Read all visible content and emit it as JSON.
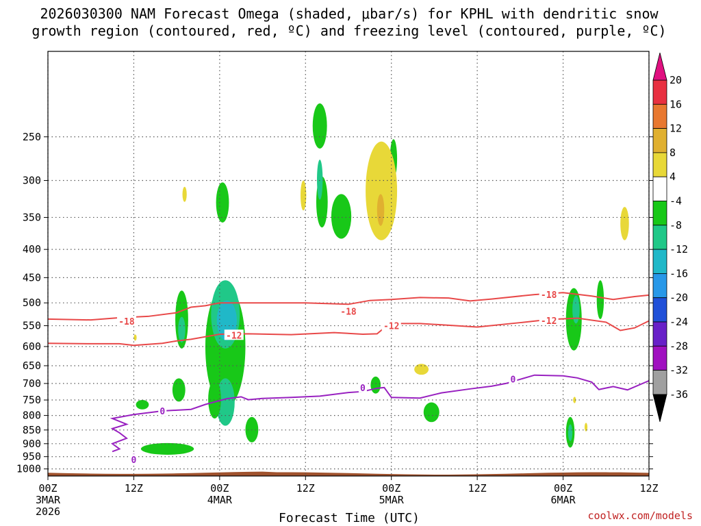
{
  "chart_data": {
    "type": "heatmap",
    "title": [
      "2026030300 NAM Forecast Omega (shaded, μbar/s) for KPHL with dendritic snow",
      "growth region (contoured, red, ºC) and freezing level (contoured, purple, ºC)"
    ],
    "xlabel": "Forecast Time (UTC)",
    "ylabel": "",
    "credit": "coolwx.com/models",
    "x_range_hours": [
      0,
      84
    ],
    "y_range_hpa": [
      1030,
      175
    ],
    "x_ticks": [
      {
        "hour": 0,
        "label": "00Z",
        "sub": "3MAR",
        "sub2": "2026"
      },
      {
        "hour": 12,
        "label": "12Z",
        "sub": "",
        "sub2": ""
      },
      {
        "hour": 24,
        "label": "00Z",
        "sub": "4MAR",
        "sub2": ""
      },
      {
        "hour": 36,
        "label": "12Z",
        "sub": "",
        "sub2": ""
      },
      {
        "hour": 48,
        "label": "00Z",
        "sub": "5MAR",
        "sub2": ""
      },
      {
        "hour": 60,
        "label": "12Z",
        "sub": "",
        "sub2": ""
      },
      {
        "hour": 72,
        "label": "00Z",
        "sub": "6MAR",
        "sub2": ""
      },
      {
        "hour": 84,
        "label": "12Z",
        "sub": "",
        "sub2": ""
      }
    ],
    "y_ticks": [
      250,
      300,
      350,
      400,
      450,
      500,
      550,
      600,
      650,
      700,
      750,
      800,
      850,
      900,
      950,
      1000
    ],
    "colorbar": {
      "labels": [
        "20",
        "16",
        "12",
        "8",
        "4",
        "-4",
        "-8",
        "-12",
        "-16",
        "-20",
        "-24",
        "-28",
        "-32",
        "-36"
      ],
      "colors": [
        "#e83040",
        "#e87830",
        "#e0b030",
        "#e8d838",
        "#ffffff",
        "#18c818",
        "#20c888",
        "#20b8c8",
        "#2898e8",
        "#2050d8",
        "#6820c8",
        "#a010c0",
        "#a0a0a0"
      ],
      "top_arrow_color": "#e01080",
      "bottom_arrow_color": "#000000"
    },
    "series": [
      {
        "name": "-18",
        "color": "#e84848",
        "points": [
          [
            0,
            535
          ],
          [
            6,
            537
          ],
          [
            10,
            532
          ],
          [
            14,
            529
          ],
          [
            18,
            521
          ],
          [
            20,
            509
          ],
          [
            22,
            506
          ],
          [
            24,
            500
          ],
          [
            30,
            500
          ],
          [
            36,
            500
          ],
          [
            42,
            503
          ],
          [
            45,
            495
          ],
          [
            48,
            493
          ],
          [
            52,
            489
          ],
          [
            56,
            490
          ],
          [
            59,
            496
          ],
          [
            62,
            492
          ],
          [
            68,
            483
          ],
          [
            72,
            479
          ],
          [
            76,
            486
          ],
          [
            79,
            493
          ],
          [
            82,
            487
          ],
          [
            84,
            484
          ]
        ]
      },
      {
        "name": "-12",
        "color": "#e84848",
        "points": [
          [
            0,
            592
          ],
          [
            6,
            593
          ],
          [
            10,
            593
          ],
          [
            12,
            597
          ],
          [
            16,
            592
          ],
          [
            18,
            586
          ],
          [
            20,
            582
          ],
          [
            24,
            570
          ],
          [
            28,
            569
          ],
          [
            34,
            571
          ],
          [
            40,
            566
          ],
          [
            44,
            570
          ],
          [
            46,
            569
          ],
          [
            47,
            555
          ],
          [
            48,
            545
          ],
          [
            52,
            545
          ],
          [
            56,
            549
          ],
          [
            60,
            553
          ],
          [
            66,
            543
          ],
          [
            70,
            536
          ],
          [
            74,
            533
          ],
          [
            78,
            542
          ],
          [
            80,
            561
          ],
          [
            82,
            555
          ],
          [
            84,
            539
          ]
        ]
      },
      {
        "name": "0",
        "color": "#9820c0",
        "points": [
          [
            9,
            930
          ],
          [
            10,
            920
          ],
          [
            9,
            900
          ],
          [
            11,
            880
          ],
          [
            10,
            860
          ],
          [
            9,
            845
          ],
          [
            11,
            830
          ],
          [
            9,
            810
          ],
          [
            12,
            797
          ],
          [
            16,
            785
          ],
          [
            20,
            780
          ],
          [
            22,
            764
          ],
          [
            25,
            746
          ],
          [
            27,
            740
          ],
          [
            28,
            749
          ],
          [
            30,
            745
          ],
          [
            34,
            742
          ],
          [
            38,
            738
          ],
          [
            42,
            727
          ],
          [
            44,
            724
          ],
          [
            46,
            714
          ],
          [
            47,
            712
          ],
          [
            48,
            742
          ],
          [
            52,
            744
          ],
          [
            55,
            728
          ],
          [
            59,
            716
          ],
          [
            62,
            708
          ],
          [
            64,
            700
          ],
          [
            68,
            676
          ],
          [
            72,
            678
          ],
          [
            74,
            684
          ],
          [
            76,
            696
          ],
          [
            77,
            718
          ],
          [
            79,
            709
          ],
          [
            81,
            719
          ],
          [
            84,
            692
          ]
        ]
      }
    ],
    "contour_labels": [
      {
        "text": "-18",
        "hour": 11,
        "hpa": 540,
        "color": "#e84848"
      },
      {
        "text": "-18",
        "hour": 42,
        "hpa": 518,
        "color": "#e84848"
      },
      {
        "text": "-18",
        "hour": 70,
        "hpa": 483,
        "color": "#e84848"
      },
      {
        "text": "-12",
        "hour": 26,
        "hpa": 572,
        "color": "#e84848"
      },
      {
        "text": "-12",
        "hour": 48,
        "hpa": 550,
        "color": "#e84848"
      },
      {
        "text": "-12",
        "hour": 70,
        "hpa": 538,
        "color": "#e84848"
      },
      {
        "text": "0",
        "hour": 16,
        "hpa": 785,
        "color": "#9820c0"
      },
      {
        "text": "0",
        "hour": 44,
        "hpa": 712,
        "color": "#9820c0"
      },
      {
        "text": "0",
        "hour": 65,
        "hpa": 687,
        "color": "#9820c0"
      },
      {
        "text": "0",
        "hour": 12,
        "hpa": 952,
        "color": "#9820c0"
      },
      {
        "text": "0",
        "hour": 12,
        "hpa": 962,
        "color": "#9820c0"
      }
    ],
    "omega_blobs": [
      {
        "color": "#18c818",
        "hour": 24.8,
        "hpa": 620,
        "dh": 2.8,
        "dp": 310
      },
      {
        "color": "#20c888",
        "hour": 24.8,
        "hpa": 530,
        "dh": 2.0,
        "dp": 150
      },
      {
        "color": "#20b8c8",
        "hour": 25.0,
        "hpa": 540,
        "dh": 1.4,
        "dp": 90
      },
      {
        "color": "#20c888",
        "hour": 24.8,
        "hpa": 760,
        "dh": 1.3,
        "dp": 150
      },
      {
        "color": "#18c818",
        "hour": 24.4,
        "hpa": 330,
        "dh": 0.9,
        "dp": 55
      },
      {
        "color": "#18c818",
        "hour": 23.3,
        "hpa": 750,
        "dh": 0.9,
        "dp": 120
      },
      {
        "color": "#18c818",
        "hour": 28.5,
        "hpa": 850,
        "dh": 0.9,
        "dp": 90
      },
      {
        "color": "#18c818",
        "hour": 18.7,
        "hpa": 540,
        "dh": 0.9,
        "dp": 130
      },
      {
        "color": "#20c888",
        "hour": 18.7,
        "hpa": 560,
        "dh": 0.5,
        "dp": 60
      },
      {
        "color": "#18c818",
        "hour": 18.3,
        "hpa": 720,
        "dh": 0.9,
        "dp": 70
      },
      {
        "color": "#18c818",
        "hour": 13.2,
        "hpa": 765,
        "dh": 0.9,
        "dp": 30
      },
      {
        "color": "#18c818",
        "hour": 16.7,
        "hpa": 920,
        "dh": 3.7,
        "dp": 45
      },
      {
        "color": "#18c818",
        "hour": 38.0,
        "hpa": 240,
        "dh": 1.0,
        "dp": 45
      },
      {
        "color": "#18c818",
        "hour": 38.3,
        "hpa": 330,
        "dh": 0.8,
        "dp": 70
      },
      {
        "color": "#20c888",
        "hour": 38.0,
        "hpa": 300,
        "dh": 0.4,
        "dp": 50
      },
      {
        "color": "#18c818",
        "hour": 41.0,
        "hpa": 350,
        "dh": 1.4,
        "dp": 65
      },
      {
        "color": "#18c818",
        "hour": 48.3,
        "hpa": 275,
        "dh": 0.5,
        "dp": 45
      },
      {
        "color": "#18c818",
        "hour": 45.8,
        "hpa": 705,
        "dh": 0.7,
        "dp": 50
      },
      {
        "color": "#18c818",
        "hour": 53.6,
        "hpa": 790,
        "dh": 1.1,
        "dp": 65
      },
      {
        "color": "#18c818",
        "hour": 73.5,
        "hpa": 540,
        "dh": 1.1,
        "dp": 140
      },
      {
        "color": "#20c888",
        "hour": 73.8,
        "hpa": 515,
        "dh": 0.5,
        "dp": 60
      },
      {
        "color": "#18c818",
        "hour": 77.2,
        "hpa": 495,
        "dh": 0.5,
        "dp": 80
      },
      {
        "color": "#18c818",
        "hour": 73.0,
        "hpa": 860,
        "dh": 0.6,
        "dp": 110
      },
      {
        "color": "#20c888",
        "hour": 73.0,
        "hpa": 860,
        "dh": 0.3,
        "dp": 60
      },
      {
        "color": "#e8d838",
        "hour": 46.6,
        "hpa": 320,
        "dh": 2.2,
        "dp": 130
      },
      {
        "color": "#e0b030",
        "hour": 46.5,
        "hpa": 340,
        "dh": 0.5,
        "dp": 45
      },
      {
        "color": "#e8d838",
        "hour": 35.7,
        "hpa": 320,
        "dh": 0.4,
        "dp": 40
      },
      {
        "color": "#e8d838",
        "hour": 19.1,
        "hpa": 318,
        "dh": 0.3,
        "dp": 20
      },
      {
        "color": "#e8d838",
        "hour": 52.2,
        "hpa": 660,
        "dh": 1.0,
        "dp": 30
      },
      {
        "color": "#e8d838",
        "hour": 80.6,
        "hpa": 360,
        "dh": 0.6,
        "dp": 50
      },
      {
        "color": "#e8d838",
        "hour": 12.2,
        "hpa": 578,
        "dh": 0.2,
        "dp": 15
      },
      {
        "color": "#e8d838",
        "hour": 75.2,
        "hpa": 840,
        "dh": 0.2,
        "dp": 30
      },
      {
        "color": "#e8d838",
        "hour": 73.6,
        "hpa": 750,
        "dh": 0.2,
        "dp": 20
      }
    ],
    "terrain_color": "#a0522d"
  }
}
